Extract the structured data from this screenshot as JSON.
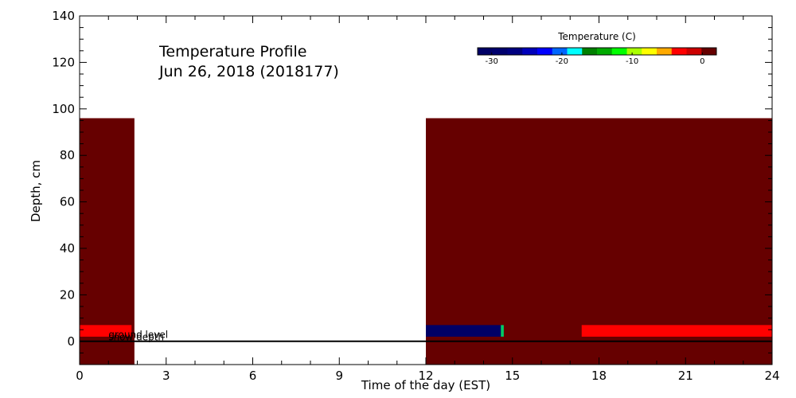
{
  "chart_data": {
    "type": "heatmap",
    "title_line1": "Temperature Profile",
    "title_line2": "Jun 26, 2018 (2018177)",
    "xlabel": "Time of the day (EST)",
    "ylabel": "Depth, cm",
    "xlim": [
      0,
      24
    ],
    "ylim": [
      -10,
      140
    ],
    "xticks": [
      0,
      3,
      6,
      9,
      12,
      15,
      18,
      21,
      24
    ],
    "yticks": [
      0,
      20,
      40,
      60,
      80,
      100,
      120,
      140
    ],
    "colorbar": {
      "title": "Temperature (C)",
      "range": [
        -32,
        2
      ],
      "ticks": [
        -30,
        -20,
        -10,
        0
      ],
      "colors": [
        "#000066",
        "#00006e",
        "#000080",
        "#0000bb",
        "#0000ff",
        "#0066ff",
        "#00ffff",
        "#008000",
        "#00aa00",
        "#00ff00",
        "#aaff00",
        "#ffff00",
        "#ffaa00",
        "#ff0000",
        "#cc0000",
        "#660000"
      ]
    },
    "blocks": [
      {
        "x0": 0,
        "x1": 1.9,
        "y0": -10,
        "y1": 96,
        "color": "#660000"
      },
      {
        "x0": 0,
        "x1": 1.8,
        "y0": 2,
        "y1": 7,
        "color": "#ff0000"
      },
      {
        "x0": 12,
        "x1": 24,
        "y0": -10,
        "y1": 96,
        "color": "#660000"
      },
      {
        "x0": 12,
        "x1": 14.6,
        "y0": 2,
        "y1": 7,
        "color": "#000066"
      },
      {
        "x0": 14.6,
        "x1": 14.7,
        "y0": 2,
        "y1": 7,
        "color": "#00cc66"
      },
      {
        "x0": 17.4,
        "x1": 24,
        "y0": 2,
        "y1": 7,
        "color": "#ff0000"
      }
    ],
    "reference_lines": [
      {
        "y": 0,
        "color": "#000000"
      }
    ],
    "annotations": [
      {
        "text": "ground level",
        "x": 1.0,
        "y": 1.5
      },
      {
        "text": "snow depth",
        "x": 1.0,
        "y": 0.5
      }
    ]
  }
}
